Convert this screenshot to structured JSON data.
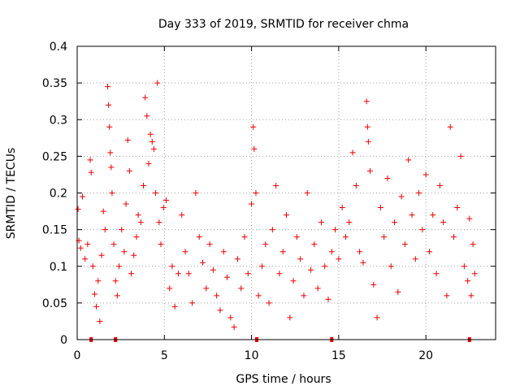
{
  "chart_data": {
    "type": "scatter",
    "title": "Day 333 of 2019, SRMTID for receiver chma",
    "xlabel": "GPS time / hours",
    "ylabel": "SRMTID / TECUs",
    "xlim": [
      0,
      24
    ],
    "ylim": [
      0,
      0.4
    ],
    "grid": true,
    "marker": "+",
    "series_color": "#ee0000",
    "x_ticks": [
      0,
      5,
      10,
      15,
      20
    ],
    "x_tick_labels": [
      "0",
      "5",
      "10",
      "15",
      "20"
    ],
    "y_ticks": [
      0,
      0.05,
      0.1,
      0.15,
      0.2,
      0.25,
      0.3,
      0.35,
      0.4
    ],
    "y_tick_labels": [
      "0",
      "0.05",
      "0.1",
      "0.15",
      "0.2",
      "0.25",
      "0.3",
      "0.35",
      "0.4"
    ],
    "zero_markers_x": [
      0.8,
      2.2,
      10.3,
      14.6,
      22.5
    ],
    "series": [
      {
        "name": "SRMTID",
        "points": [
          [
            0.05,
            0.178
          ],
          [
            0.1,
            0.135
          ],
          [
            0.2,
            0.125
          ],
          [
            0.3,
            0.195
          ],
          [
            0.45,
            0.11
          ],
          [
            0.6,
            0.13
          ],
          [
            0.75,
            0.245
          ],
          [
            0.8,
            0.228
          ],
          [
            0.9,
            0.1
          ],
          [
            1.0,
            0.062
          ],
          [
            1.1,
            0.045
          ],
          [
            1.2,
            0.08
          ],
          [
            1.3,
            0.025
          ],
          [
            1.4,
            0.115
          ],
          [
            1.5,
            0.175
          ],
          [
            1.6,
            0.15
          ],
          [
            1.75,
            0.345
          ],
          [
            1.8,
            0.32
          ],
          [
            1.85,
            0.29
          ],
          [
            1.9,
            0.255
          ],
          [
            1.95,
            0.235
          ],
          [
            2.0,
            0.2
          ],
          [
            2.1,
            0.13
          ],
          [
            2.2,
            0.08
          ],
          [
            2.3,
            0.06
          ],
          [
            2.4,
            0.1
          ],
          [
            2.55,
            0.15
          ],
          [
            2.7,
            0.12
          ],
          [
            2.8,
            0.185
          ],
          [
            2.9,
            0.272
          ],
          [
            3.0,
            0.23
          ],
          [
            3.1,
            0.09
          ],
          [
            3.25,
            0.115
          ],
          [
            3.4,
            0.14
          ],
          [
            3.5,
            0.17
          ],
          [
            3.65,
            0.16
          ],
          [
            3.8,
            0.21
          ],
          [
            3.9,
            0.33
          ],
          [
            4.0,
            0.305
          ],
          [
            4.1,
            0.24
          ],
          [
            4.2,
            0.28
          ],
          [
            4.3,
            0.27
          ],
          [
            4.4,
            0.26
          ],
          [
            4.5,
            0.2
          ],
          [
            4.6,
            0.35
          ],
          [
            4.7,
            0.16
          ],
          [
            4.8,
            0.13
          ],
          [
            4.95,
            0.18
          ],
          [
            5.1,
            0.19
          ],
          [
            5.3,
            0.07
          ],
          [
            5.45,
            0.1
          ],
          [
            5.6,
            0.045
          ],
          [
            5.8,
            0.09
          ],
          [
            6.0,
            0.17
          ],
          [
            6.2,
            0.12
          ],
          [
            6.4,
            0.09
          ],
          [
            6.6,
            0.05
          ],
          [
            6.8,
            0.2
          ],
          [
            7.0,
            0.14
          ],
          [
            7.2,
            0.105
          ],
          [
            7.4,
            0.07
          ],
          [
            7.6,
            0.13
          ],
          [
            7.8,
            0.095
          ],
          [
            8.0,
            0.06
          ],
          [
            8.2,
            0.04
          ],
          [
            8.4,
            0.12
          ],
          [
            8.6,
            0.085
          ],
          [
            8.8,
            0.03
          ],
          [
            9.0,
            0.017
          ],
          [
            9.2,
            0.11
          ],
          [
            9.4,
            0.07
          ],
          [
            9.6,
            0.14
          ],
          [
            9.8,
            0.09
          ],
          [
            10.0,
            0.185
          ],
          [
            10.1,
            0.29
          ],
          [
            10.15,
            0.26
          ],
          [
            10.25,
            0.2
          ],
          [
            10.4,
            0.06
          ],
          [
            10.6,
            0.1
          ],
          [
            10.8,
            0.13
          ],
          [
            11.0,
            0.05
          ],
          [
            11.2,
            0.15
          ],
          [
            11.4,
            0.21
          ],
          [
            11.6,
            0.09
          ],
          [
            11.8,
            0.12
          ],
          [
            12.0,
            0.17
          ],
          [
            12.2,
            0.03
          ],
          [
            12.4,
            0.08
          ],
          [
            12.6,
            0.14
          ],
          [
            12.8,
            0.11
          ],
          [
            13.0,
            0.06
          ],
          [
            13.2,
            0.2
          ],
          [
            13.4,
            0.095
          ],
          [
            13.6,
            0.13
          ],
          [
            13.8,
            0.07
          ],
          [
            14.0,
            0.16
          ],
          [
            14.2,
            0.1
          ],
          [
            14.4,
            0.055
          ],
          [
            14.6,
            0.12
          ],
          [
            14.8,
            0.15
          ],
          [
            15.0,
            0.11
          ],
          [
            15.2,
            0.18
          ],
          [
            15.4,
            0.14
          ],
          [
            15.6,
            0.16
          ],
          [
            15.8,
            0.255
          ],
          [
            16.0,
            0.21
          ],
          [
            16.2,
            0.12
          ],
          [
            16.4,
            0.105
          ],
          [
            16.6,
            0.325
          ],
          [
            16.65,
            0.29
          ],
          [
            16.7,
            0.27
          ],
          [
            16.8,
            0.23
          ],
          [
            17.0,
            0.075
          ],
          [
            17.2,
            0.03
          ],
          [
            17.4,
            0.18
          ],
          [
            17.6,
            0.14
          ],
          [
            17.8,
            0.22
          ],
          [
            18.0,
            0.1
          ],
          [
            18.2,
            0.16
          ],
          [
            18.4,
            0.065
          ],
          [
            18.6,
            0.195
          ],
          [
            18.8,
            0.13
          ],
          [
            19.0,
            0.245
          ],
          [
            19.2,
            0.17
          ],
          [
            19.4,
            0.11
          ],
          [
            19.6,
            0.2
          ],
          [
            19.8,
            0.15
          ],
          [
            20.0,
            0.225
          ],
          [
            20.2,
            0.12
          ],
          [
            20.4,
            0.17
          ],
          [
            20.6,
            0.09
          ],
          [
            20.8,
            0.21
          ],
          [
            21.0,
            0.16
          ],
          [
            21.2,
            0.06
          ],
          [
            21.4,
            0.29
          ],
          [
            21.6,
            0.14
          ],
          [
            21.8,
            0.18
          ],
          [
            22.0,
            0.25
          ],
          [
            22.2,
            0.1
          ],
          [
            22.4,
            0.08
          ],
          [
            22.5,
            0.165
          ],
          [
            22.6,
            0.06
          ],
          [
            22.7,
            0.13
          ],
          [
            22.8,
            0.09
          ]
        ]
      }
    ]
  }
}
